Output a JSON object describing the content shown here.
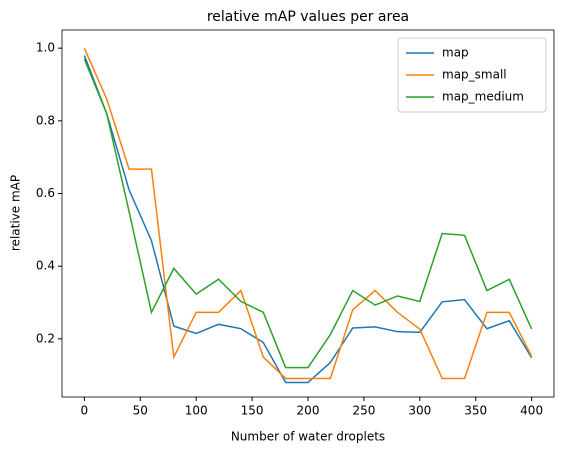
{
  "chart_data": {
    "type": "line",
    "title": "relative mAP values per area",
    "x_label": "Number of water droplets",
    "y_label": "relative mAP",
    "x": [
      0,
      20,
      40,
      60,
      80,
      100,
      120,
      140,
      160,
      180,
      200,
      220,
      240,
      260,
      280,
      300,
      320,
      340,
      360,
      380,
      400
    ],
    "series": [
      {
        "name": "map",
        "color": "#1f77b4",
        "values": [
          0.98,
          0.82,
          0.61,
          0.47,
          0.235,
          0.215,
          0.24,
          0.228,
          0.19,
          0.08,
          0.08,
          0.135,
          0.23,
          0.233,
          0.22,
          0.218,
          0.302,
          0.308,
          0.228,
          0.25,
          0.148
        ]
      },
      {
        "name": "map_small",
        "color": "#ff7f0e",
        "values": [
          1.0,
          0.86,
          0.667,
          0.667,
          0.15,
          0.273,
          0.273,
          0.333,
          0.15,
          0.091,
          0.091,
          0.091,
          0.28,
          0.333,
          0.273,
          0.227,
          0.091,
          0.091,
          0.273,
          0.273,
          0.152
        ]
      },
      {
        "name": "map_medium",
        "color": "#2ca02c",
        "values": [
          0.97,
          0.82,
          0.55,
          0.273,
          0.394,
          0.323,
          0.364,
          0.303,
          0.273,
          0.121,
          0.121,
          0.212,
          0.333,
          0.293,
          0.318,
          0.303,
          0.49,
          0.485,
          0.333,
          0.364,
          0.227
        ]
      }
    ],
    "xlim": [
      -20,
      420
    ],
    "ylim": [
      0.04,
      1.05
    ],
    "xticks": [
      0,
      50,
      100,
      150,
      200,
      250,
      300,
      350,
      400
    ],
    "yticks": [
      0.2,
      0.4,
      0.6,
      0.8,
      {
        "value": 1,
        "label": "1.0"
      }
    ],
    "grid": false,
    "legend": "upper right"
  }
}
